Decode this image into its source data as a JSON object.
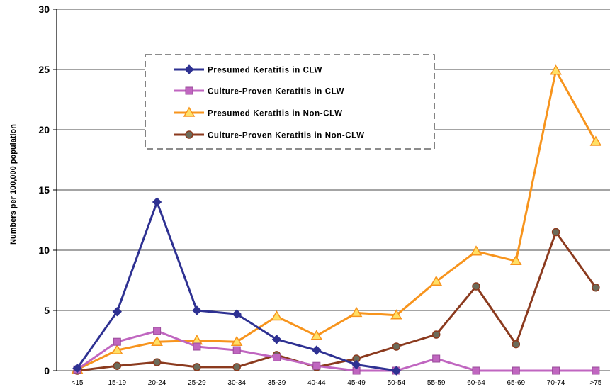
{
  "chart_data": {
    "type": "line",
    "title": "",
    "xlabel": "",
    "ylabel": "Numbers per 100,000 population",
    "ylim": [
      0,
      30
    ],
    "yticks": [
      0,
      5,
      10,
      15,
      20,
      25,
      30
    ],
    "grid": true,
    "legend_position": "top-left",
    "categories": [
      "<15",
      "15-19",
      "20-24",
      "25-29",
      "30-34",
      "35-39",
      "40-44",
      "45-49",
      "50-54",
      "55-59",
      "60-64",
      "65-69",
      "70-74",
      ">75"
    ],
    "series": [
      {
        "name": "Presumed Keratitis in CLW",
        "color": "#2e3192",
        "marker": "diamond",
        "values": [
          0.2,
          4.9,
          14.0,
          5.0,
          4.7,
          2.6,
          1.7,
          0.5,
          0,
          null,
          null,
          null,
          null,
          null
        ]
      },
      {
        "name": "Culture-Proven Keratitis in CLW",
        "color": "#c066c0",
        "marker": "square",
        "values": [
          0.1,
          2.4,
          3.3,
          2.0,
          1.7,
          1.1,
          0.4,
          0,
          0,
          1.0,
          0,
          0,
          0,
          0
        ]
      },
      {
        "name": "Presumed Keratitis  in Non-CLW",
        "color": "#f7941d",
        "marker": "triangle",
        "values": [
          0.1,
          1.7,
          2.4,
          2.5,
          2.4,
          4.5,
          2.9,
          4.8,
          4.6,
          7.4,
          9.9,
          9.1,
          24.9,
          19.0
        ]
      },
      {
        "name": "Culture-Proven Keratitis in Non-CLW",
        "color": "#8b3a1e",
        "marker": "circle",
        "values": [
          0,
          0.4,
          0.7,
          0.3,
          0.3,
          1.3,
          0.3,
          1.0,
          2.0,
          3.0,
          7.0,
          2.2,
          11.5,
          6.9
        ]
      }
    ]
  }
}
